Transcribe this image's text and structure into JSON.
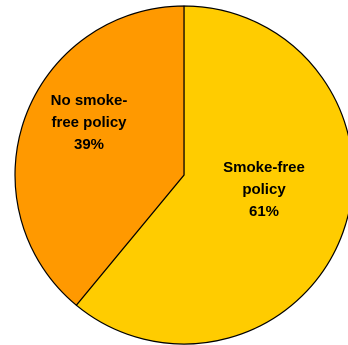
{
  "chart_data": {
    "type": "pie",
    "slices": [
      {
        "label_lines": [
          "Smoke-free",
          "policy",
          "61%"
        ],
        "value": 61,
        "color": "#FFCC00"
      },
      {
        "label_lines": [
          "No smoke-",
          "free policy",
          "39%"
        ],
        "value": 39,
        "color": "#FF9900"
      }
    ],
    "start_angle_deg": 0,
    "direction": "clockwise"
  }
}
